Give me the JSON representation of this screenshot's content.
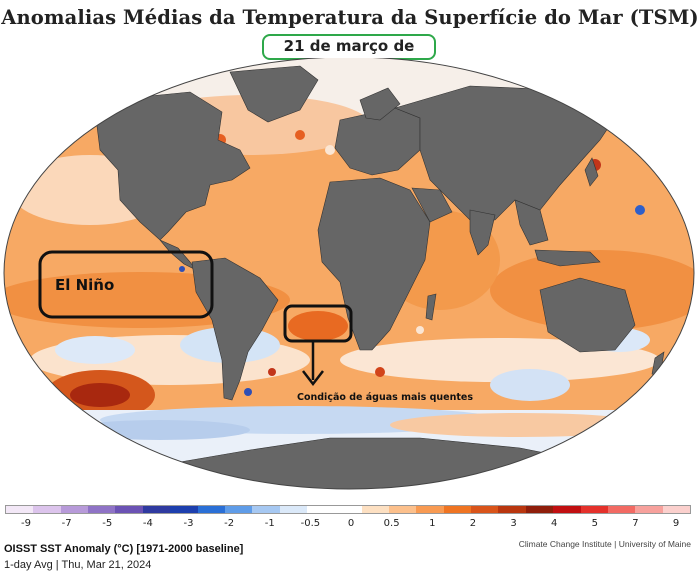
{
  "title": "Anomalias Médias da Temperatura da Superfície do Mar (TSM)",
  "date": "21 de março de 2024",
  "annotations": {
    "el_nino": "El Niño",
    "warm_waters": "Condição de águas mais quentes"
  },
  "legend": {
    "ticks": [
      "-9",
      "-7",
      "-5",
      "-4",
      "-3",
      "-2",
      "-1",
      "-0.5",
      "0",
      "0.5",
      "1",
      "2",
      "3",
      "4",
      "5",
      "7",
      "9"
    ],
    "colors": [
      "#f3e8f7",
      "#dcc4ec",
      "#b79ad9",
      "#8f73c6",
      "#6b52b4",
      "#2f3aa0",
      "#1d3fae",
      "#2a6fd6",
      "#5f9ce8",
      "#a6c8f2",
      "#dbe9f9",
      "#ffffff",
      "#ffffff",
      "#fde0c2",
      "#fcc08c",
      "#f89a52",
      "#ef7422",
      "#d9541a",
      "#b9360f",
      "#8f1e0b",
      "#c10f11",
      "#e4312b",
      "#f26a63",
      "#f7a19c",
      "#fbd0cd"
    ]
  },
  "footer": {
    "product": "OISST SST Anomaly (°C) [1971-2000 baseline]",
    "period": "1-day Avg | Thu, Mar 21, 2024",
    "credit": "Climate Change Institute | University of Maine"
  }
}
